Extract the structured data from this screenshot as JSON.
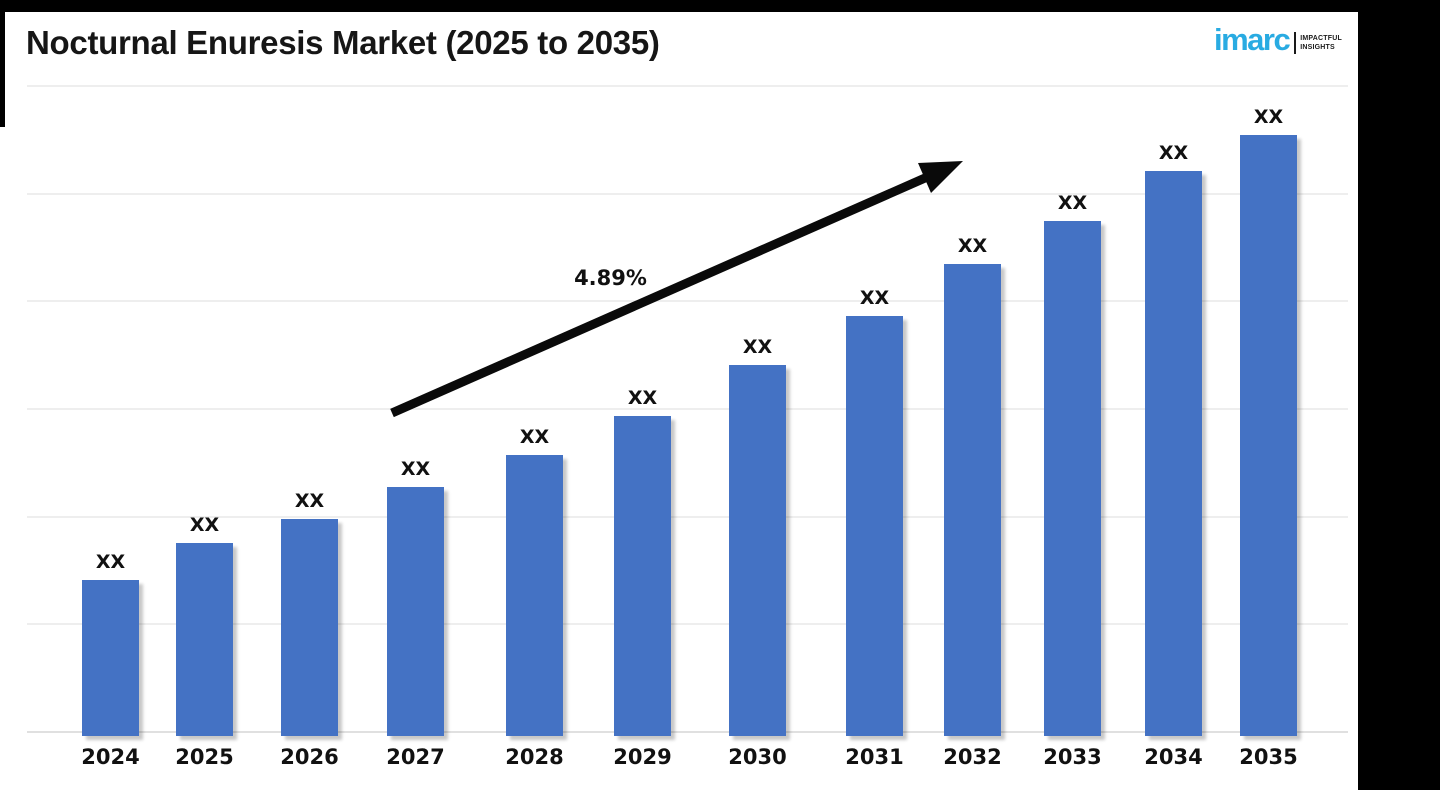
{
  "page": {
    "title": "Nocturnal Enuresis Market (2025 to 2035)"
  },
  "logo": {
    "brand": "imarc",
    "tagline_line1": "IMPACTFUL",
    "tagline_line2": "INSIGHTS",
    "brand_color": "#29ABE2"
  },
  "chart_data": {
    "type": "bar",
    "title": "Nocturnal Enuresis Market (2025 to 2035)",
    "categories": [
      "2024",
      "2025",
      "2026",
      "2027",
      "2028",
      "2029",
      "2030",
      "2031",
      "2032",
      "2033",
      "2034",
      "2035"
    ],
    "values": [
      "XX",
      "XX",
      "XX",
      "XX",
      "XX",
      "XX",
      "XX",
      "XX",
      "XX",
      "XX",
      "XX",
      "XX"
    ],
    "relative_heights_gridline_units": [
      1.45,
      1.79,
      2.01,
      2.31,
      2.61,
      2.97,
      3.44,
      3.9,
      4.38,
      4.78,
      5.25,
      5.58
    ],
    "cagr_label": "4.89%",
    "bar_color": "#4472C4",
    "xlabel": "",
    "ylabel": "",
    "y_axis_ticks_visible": false,
    "ylim_gridline_units": [
      0,
      6
    ],
    "grid": "horizontal",
    "legend": "none",
    "annotation": "upward trend arrow labeled 4.89%"
  }
}
